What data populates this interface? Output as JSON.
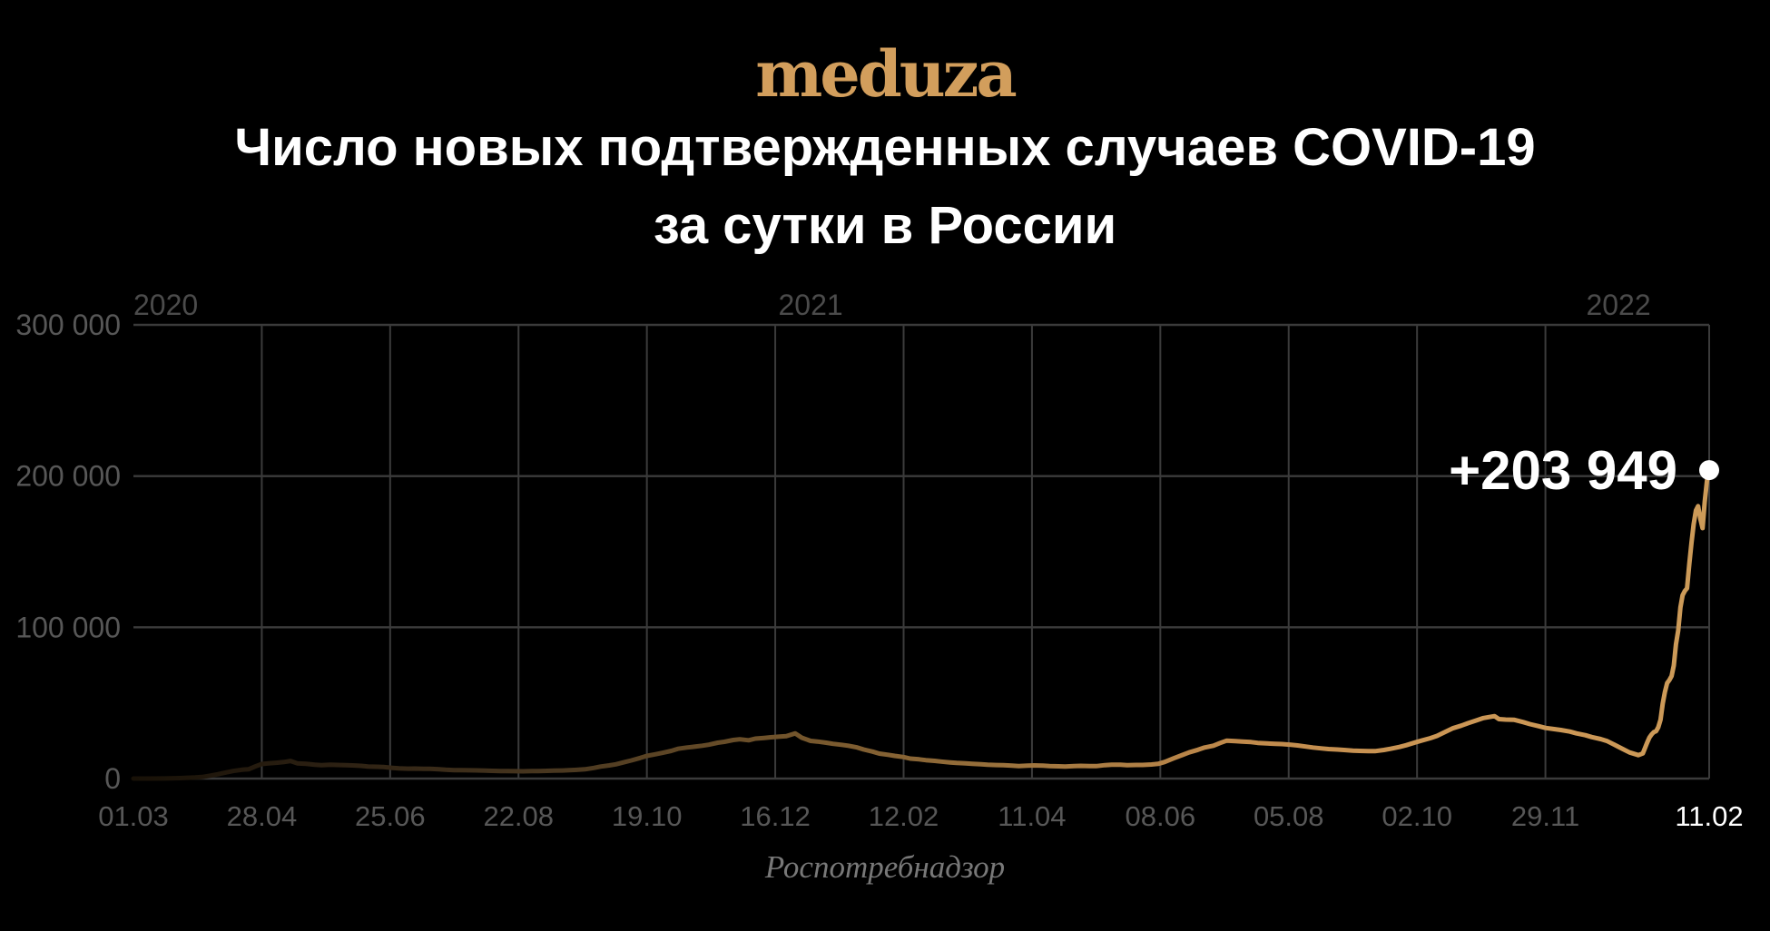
{
  "header": {
    "logo_text": "meduza",
    "title_line1": "Число новых подтвержденных случаев COVID-19",
    "title_line2": "за сутки в России"
  },
  "footer": {
    "source": "Роспотребнадзор"
  },
  "colors": {
    "background": "#000000",
    "logo_gold": "#d29e5c",
    "title_white": "#ffffff",
    "grid": "#3b3b3b",
    "tick_label": "#575757",
    "year_label": "#4b4b4b",
    "highlight_label": "#ffffff",
    "dot": "#ffffff",
    "annotation": "#ffffff",
    "source_gray": "#787878",
    "line_gold": "#cc9a58"
  },
  "chart_data": {
    "type": "line",
    "title": "Число новых подтвержденных случаев COVID-19 за сутки в России",
    "source": "Роспотребнадзор",
    "xlabel": "",
    "ylabel": "",
    "x_unit": "days since 2020-03-01",
    "x_range_days": 712,
    "ylim": [
      0,
      300000
    ],
    "grid": true,
    "y_ticks": [
      {
        "value": 0,
        "label": "0"
      },
      {
        "value": 100000,
        "label": "100 000"
      },
      {
        "value": 200000,
        "label": "200 000"
      },
      {
        "value": 300000,
        "label": "300 000"
      }
    ],
    "x_ticks": [
      {
        "day": 0,
        "label": "01.03",
        "gridline": false,
        "highlight": false
      },
      {
        "day": 58,
        "label": "28.04",
        "gridline": true,
        "highlight": false
      },
      {
        "day": 116,
        "label": "25.06",
        "gridline": true,
        "highlight": false
      },
      {
        "day": 174,
        "label": "22.08",
        "gridline": true,
        "highlight": false
      },
      {
        "day": 232,
        "label": "19.10",
        "gridline": true,
        "highlight": false
      },
      {
        "day": 290,
        "label": "16.12",
        "gridline": true,
        "highlight": false
      },
      {
        "day": 348,
        "label": "12.02",
        "gridline": true,
        "highlight": false
      },
      {
        "day": 406,
        "label": "11.04",
        "gridline": true,
        "highlight": false
      },
      {
        "day": 464,
        "label": "08.06",
        "gridline": true,
        "highlight": false
      },
      {
        "day": 522,
        "label": "05.08",
        "gridline": true,
        "highlight": false
      },
      {
        "day": 580,
        "label": "02.10",
        "gridline": true,
        "highlight": false
      },
      {
        "day": 638,
        "label": "29.11",
        "gridline": true,
        "highlight": false
      },
      {
        "day": 712,
        "label": "11.02",
        "gridline": true,
        "highlight": true
      }
    ],
    "year_labels": [
      {
        "day": 0,
        "label": "2020",
        "anchor": "start"
      },
      {
        "day": 306,
        "label": "2021",
        "anchor": "middle"
      },
      {
        "day": 671,
        "label": "2022",
        "anchor": "middle"
      }
    ],
    "annotation": {
      "label": "+203 949",
      "value": 203949,
      "day": 712
    },
    "line_gradient": [
      {
        "offset": 0,
        "color": "#181107"
      },
      {
        "offset": 0.13,
        "color": "#2d2113"
      },
      {
        "offset": 0.27,
        "color": "#4a3820"
      },
      {
        "offset": 0.42,
        "color": "#73552c"
      },
      {
        "offset": 0.57,
        "color": "#a0763f"
      },
      {
        "offset": 0.7,
        "color": "#c08a4c"
      },
      {
        "offset": 0.82,
        "color": "#cb9655"
      },
      {
        "offset": 1,
        "color": "#cc9a58"
      }
    ],
    "series": [
      {
        "name": "daily_new_confirmed_cases",
        "points": [
          [
            0,
            0
          ],
          [
            7,
            10
          ],
          [
            14,
            60
          ],
          [
            21,
            300
          ],
          [
            28,
            750
          ],
          [
            31,
            1050
          ],
          [
            35,
            2000
          ],
          [
            38,
            2800
          ],
          [
            42,
            4100
          ],
          [
            45,
            5000
          ],
          [
            49,
            5800
          ],
          [
            52,
            6100
          ],
          [
            55,
            8000
          ],
          [
            58,
            9600
          ],
          [
            61,
            10000
          ],
          [
            65,
            10500
          ],
          [
            68,
            10900
          ],
          [
            71,
            11650
          ],
          [
            74,
            10100
          ],
          [
            78,
            9700
          ],
          [
            82,
            9200
          ],
          [
            85,
            8900
          ],
          [
            89,
            9200
          ],
          [
            92,
            9000
          ],
          [
            96,
            8800
          ],
          [
            99,
            8700
          ],
          [
            103,
            8400
          ],
          [
            106,
            8000
          ],
          [
            110,
            7800
          ],
          [
            113,
            7600
          ],
          [
            117,
            7100
          ],
          [
            120,
            6700
          ],
          [
            124,
            6550
          ],
          [
            127,
            6600
          ],
          [
            131,
            6500
          ],
          [
            134,
            6400
          ],
          [
            138,
            6100
          ],
          [
            141,
            5800
          ],
          [
            145,
            5600
          ],
          [
            148,
            5500
          ],
          [
            152,
            5450
          ],
          [
            155,
            5400
          ],
          [
            159,
            5200
          ],
          [
            162,
            5100
          ],
          [
            166,
            5000
          ],
          [
            169,
            4900
          ],
          [
            173,
            4850
          ],
          [
            176,
            4800
          ],
          [
            180,
            4900
          ],
          [
            183,
            4950
          ],
          [
            187,
            5100
          ],
          [
            190,
            5200
          ],
          [
            194,
            5350
          ],
          [
            197,
            5500
          ],
          [
            201,
            5800
          ],
          [
            204,
            6100
          ],
          [
            208,
            7000
          ],
          [
            211,
            7900
          ],
          [
            215,
            8700
          ],
          [
            218,
            9400
          ],
          [
            222,
            10900
          ],
          [
            225,
            12000
          ],
          [
            229,
            13600
          ],
          [
            232,
            15000
          ],
          [
            236,
            16100
          ],
          [
            239,
            17000
          ],
          [
            243,
            18300
          ],
          [
            246,
            19700
          ],
          [
            250,
            20500
          ],
          [
            253,
            21000
          ],
          [
            257,
            21700
          ],
          [
            260,
            22400
          ],
          [
            264,
            23700
          ],
          [
            267,
            24300
          ],
          [
            271,
            25500
          ],
          [
            274,
            26000
          ],
          [
            278,
            25300
          ],
          [
            281,
            26400
          ],
          [
            285,
            26900
          ],
          [
            288,
            27300
          ],
          [
            292,
            27700
          ],
          [
            295,
            28000
          ],
          [
            299,
            29900
          ],
          [
            302,
            27000
          ],
          [
            306,
            24900
          ],
          [
            309,
            24500
          ],
          [
            313,
            23700
          ],
          [
            316,
            23000
          ],
          [
            320,
            22300
          ],
          [
            323,
            21700
          ],
          [
            327,
            20600
          ],
          [
            330,
            19200
          ],
          [
            334,
            17800
          ],
          [
            337,
            16500
          ],
          [
            341,
            15700
          ],
          [
            344,
            15000
          ],
          [
            348,
            14200
          ],
          [
            351,
            13200
          ],
          [
            355,
            12700
          ],
          [
            358,
            12200
          ],
          [
            362,
            11700
          ],
          [
            365,
            11200
          ],
          [
            369,
            10700
          ],
          [
            372,
            10300
          ],
          [
            376,
            10000
          ],
          [
            379,
            9700
          ],
          [
            383,
            9400
          ],
          [
            386,
            9100
          ],
          [
            390,
            8950
          ],
          [
            393,
            8800
          ],
          [
            397,
            8500
          ],
          [
            400,
            8300
          ],
          [
            404,
            8600
          ],
          [
            407,
            8700
          ],
          [
            411,
            8500
          ],
          [
            414,
            8300
          ],
          [
            418,
            8100
          ],
          [
            421,
            8000
          ],
          [
            425,
            8300
          ],
          [
            428,
            8400
          ],
          [
            432,
            8300
          ],
          [
            435,
            8200
          ],
          [
            439,
            8900
          ],
          [
            442,
            9200
          ],
          [
            446,
            9100
          ],
          [
            449,
            8900
          ],
          [
            453,
            9000
          ],
          [
            456,
            9000
          ],
          [
            460,
            9300
          ],
          [
            463,
            9700
          ],
          [
            466,
            11000
          ],
          [
            470,
            13400
          ],
          [
            474,
            15600
          ],
          [
            477,
            17300
          ],
          [
            481,
            19000
          ],
          [
            484,
            20500
          ],
          [
            488,
            21700
          ],
          [
            491,
            23500
          ],
          [
            494,
            25100
          ],
          [
            498,
            24700
          ],
          [
            501,
            24400
          ],
          [
            505,
            24100
          ],
          [
            508,
            23600
          ],
          [
            512,
            23200
          ],
          [
            516,
            23000
          ],
          [
            519,
            22800
          ],
          [
            523,
            22300
          ],
          [
            526,
            21900
          ],
          [
            530,
            21100
          ],
          [
            533,
            20500
          ],
          [
            537,
            19900
          ],
          [
            540,
            19500
          ],
          [
            544,
            19200
          ],
          [
            547,
            18900
          ],
          [
            551,
            18500
          ],
          [
            554,
            18300
          ],
          [
            558,
            18200
          ],
          [
            561,
            18100
          ],
          [
            565,
            18900
          ],
          [
            568,
            19700
          ],
          [
            572,
            20900
          ],
          [
            575,
            22000
          ],
          [
            579,
            23800
          ],
          [
            582,
            25100
          ],
          [
            586,
            26700
          ],
          [
            589,
            28200
          ],
          [
            593,
            31100
          ],
          [
            596,
            33200
          ],
          [
            600,
            35000
          ],
          [
            603,
            36600
          ],
          [
            607,
            38500
          ],
          [
            610,
            40000
          ],
          [
            615,
            41300
          ],
          [
            617,
            39300
          ],
          [
            620,
            39000
          ],
          [
            624,
            38800
          ],
          [
            628,
            37300
          ],
          [
            631,
            36000
          ],
          [
            635,
            34600
          ],
          [
            638,
            33500
          ],
          [
            642,
            32700
          ],
          [
            645,
            32100
          ],
          [
            649,
            31100
          ],
          [
            652,
            29900
          ],
          [
            656,
            28700
          ],
          [
            659,
            27400
          ],
          [
            663,
            26100
          ],
          [
            666,
            24700
          ],
          [
            669,
            22500
          ],
          [
            673,
            19500
          ],
          [
            676,
            17300
          ],
          [
            680,
            15500
          ],
          [
            682,
            16600
          ],
          [
            684,
            23800
          ],
          [
            685,
            27200
          ],
          [
            686,
            29200
          ],
          [
            687,
            30700
          ],
          [
            688,
            31300
          ],
          [
            689,
            33900
          ],
          [
            690,
            38900
          ],
          [
            691,
            49500
          ],
          [
            692,
            57200
          ],
          [
            693,
            63200
          ],
          [
            694,
            65100
          ],
          [
            695,
            67800
          ],
          [
            696,
            74700
          ],
          [
            697,
            88800
          ],
          [
            698,
            98000
          ],
          [
            699,
            113100
          ],
          [
            700,
            121200
          ],
          [
            701,
            124100
          ],
          [
            702,
            125800
          ],
          [
            703,
            141900
          ],
          [
            704,
            155800
          ],
          [
            705,
            168200
          ],
          [
            706,
            177300
          ],
          [
            707,
            180100
          ],
          [
            708,
            171900
          ],
          [
            709,
            165600
          ],
          [
            710,
            183100
          ],
          [
            711,
            197100
          ],
          [
            712,
            203949
          ]
        ]
      }
    ]
  }
}
